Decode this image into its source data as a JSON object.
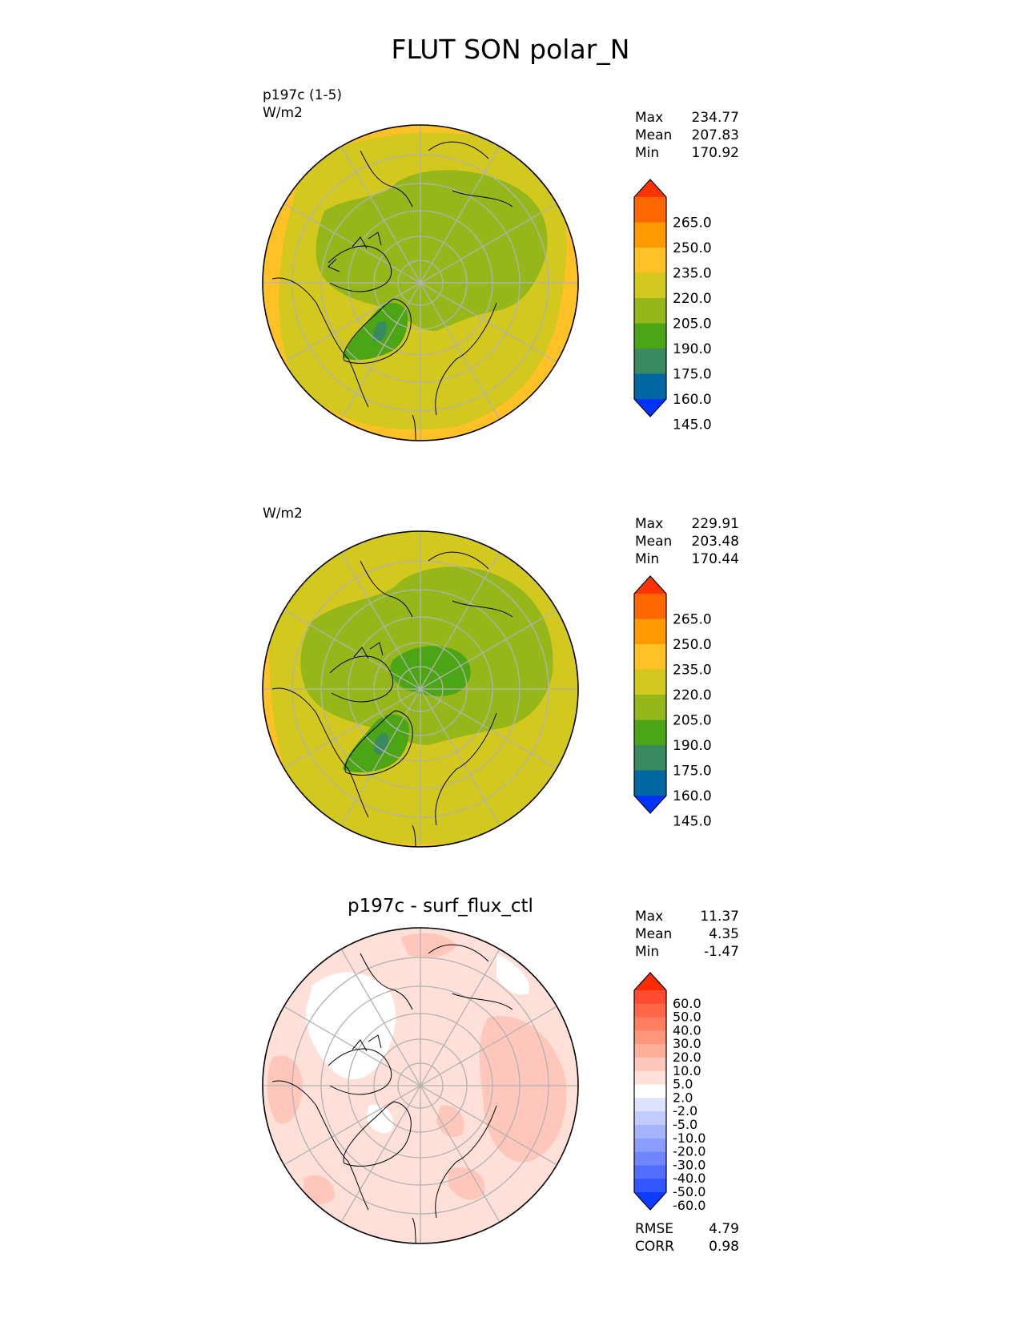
{
  "title": "FLUT SON polar_N",
  "panels": [
    {
      "id": "test",
      "label": "p197c (1-5)",
      "units": "W/m2",
      "subtitle": "",
      "stats": [
        {
          "name": "Max",
          "value": "234.77"
        },
        {
          "name": "Mean",
          "value": "207.83"
        },
        {
          "name": "Min",
          "value": "170.92"
        }
      ],
      "metrics": []
    },
    {
      "id": "reference",
      "label": "",
      "units": "W/m2",
      "subtitle": "",
      "stats": [
        {
          "name": "Max",
          "value": "229.91"
        },
        {
          "name": "Mean",
          "value": "203.48"
        },
        {
          "name": "Min",
          "value": "170.44"
        }
      ],
      "metrics": []
    },
    {
      "id": "difference",
      "label": "",
      "units": "",
      "subtitle": "p197c - surf_flux_ctl",
      "stats": [
        {
          "name": "Max",
          "value": "11.37"
        },
        {
          "name": "Mean",
          "value": "4.35"
        },
        {
          "name": "Min",
          "value": "-1.47"
        }
      ],
      "metrics": [
        {
          "name": "RMSE",
          "value": "4.79"
        },
        {
          "name": "CORR",
          "value": "0.98"
        }
      ]
    }
  ],
  "chart_data": [
    {
      "type": "heatmap",
      "projection": "north-polar-stereographic",
      "panel": "p197c (1-5)",
      "units": "W/m2",
      "colorbar": {
        "ticks": [
          "265.0",
          "250.0",
          "235.0",
          "220.0",
          "205.0",
          "190.0",
          "175.0",
          "160.0",
          "145.0"
        ],
        "colors": [
          "#ff3300",
          "#ff6600",
          "#ff9900",
          "#ffc125",
          "#d2c81e",
          "#96b71a",
          "#4ca514",
          "#398a5f",
          "#0068a0",
          "#0033ff"
        ],
        "extend": "both"
      },
      "regions": [
        {
          "color": "#d2c81e",
          "value_range": [
            205,
            220
          ],
          "area": "most of domain"
        },
        {
          "color": "#96b71a",
          "value_range": [
            190,
            205
          ],
          "area": "central Arctic, Siberia, Canadian archipelago"
        },
        {
          "color": "#4ca514",
          "value_range": [
            175,
            190
          ],
          "area": "Greenland"
        },
        {
          "color": "#398a5f",
          "value_range": [
            160,
            175
          ],
          "area": "central Greenland"
        },
        {
          "color": "#ffc125",
          "value_range": [
            220,
            235
          ],
          "area": "outer rim"
        }
      ],
      "stats": {
        "max": 234.77,
        "mean": 207.83,
        "min": 170.92
      }
    },
    {
      "type": "heatmap",
      "projection": "north-polar-stereographic",
      "units": "W/m2",
      "colorbar": {
        "ticks": [
          "265.0",
          "250.0",
          "235.0",
          "220.0",
          "205.0",
          "190.0",
          "175.0",
          "160.0",
          "145.0"
        ],
        "colors": [
          "#ff3300",
          "#ff6600",
          "#ff9900",
          "#ffc125",
          "#d2c81e",
          "#96b71a",
          "#4ca514",
          "#398a5f",
          "#0068a0",
          "#0033ff"
        ],
        "extend": "both"
      },
      "regions": [
        {
          "color": "#d2c81e",
          "value_range": [
            205,
            220
          ],
          "area": "outer domain"
        },
        {
          "color": "#96b71a",
          "value_range": [
            190,
            205
          ],
          "area": "high latitudes"
        },
        {
          "color": "#4ca514",
          "value_range": [
            175,
            190
          ],
          "area": "central Arctic and Greenland"
        },
        {
          "color": "#398a5f",
          "value_range": [
            160,
            175
          ],
          "area": "central Greenland"
        },
        {
          "color": "#ffc125",
          "value_range": [
            220,
            235
          ],
          "area": "outer rim"
        }
      ],
      "stats": {
        "max": 229.91,
        "mean": 203.48,
        "min": 170.44
      }
    },
    {
      "type": "heatmap",
      "projection": "north-polar-stereographic",
      "title": "p197c - surf_flux_ctl",
      "colorbar": {
        "ticks": [
          "60.0",
          "50.0",
          "40.0",
          "30.0",
          "20.0",
          "10.0",
          "5.0",
          "2.0",
          "-2.0",
          "-5.0",
          "-10.0",
          "-20.0",
          "-30.0",
          "-40.0",
          "-50.0",
          "-60.0"
        ],
        "colors": [
          "#ff2a00",
          "#ff4b31",
          "#ff6547",
          "#ff7d61",
          "#ff977d",
          "#ffae9a",
          "#ffc7bb",
          "#ffe0d8",
          "#ffffff",
          "#dde3ff",
          "#c1cbff",
          "#a6b4ff",
          "#8b9dff",
          "#6f86ff",
          "#526eff",
          "#3255ff",
          "#0d3bff"
        ],
        "extend": "both"
      },
      "regions": [
        {
          "color": "#ffe0d8",
          "value_range": [
            2,
            5
          ],
          "area": "most of domain"
        },
        {
          "color": "#ffc7bb",
          "value_range": [
            5,
            10
          ],
          "area": "north Atlantic, Siberia, patches"
        },
        {
          "color": "#ffffff",
          "value_range": [
            -2,
            2
          ],
          "area": "Canadian archipelago, parts of Alaska"
        }
      ],
      "stats": {
        "max": 11.37,
        "mean": 4.35,
        "min": -1.47
      },
      "metrics": {
        "rmse": 4.79,
        "corr": 0.98
      }
    }
  ]
}
